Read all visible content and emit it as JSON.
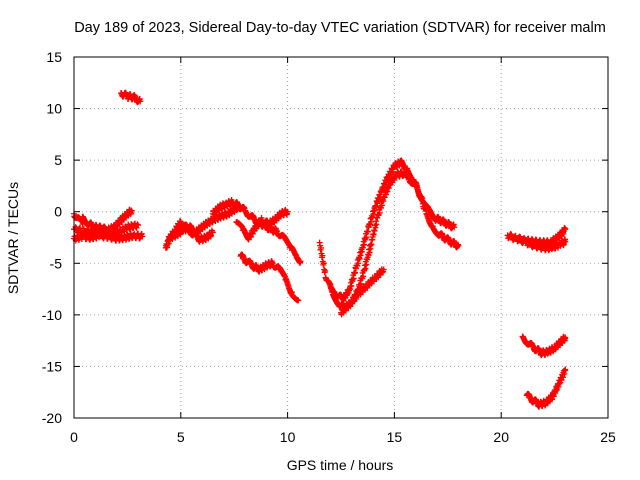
{
  "chart_data": {
    "type": "scatter",
    "title": "Day 189 of 2023, Sidereal Day-to-day VTEC variation (SDTVAR) for receiver malm",
    "xlabel": "GPS time / hours",
    "ylabel": "SDTVAR / TECUs",
    "xlim": [
      0,
      25
    ],
    "ylim": [
      -20,
      15
    ],
    "xticks": [
      "0",
      "5",
      "10",
      "15",
      "20",
      "25"
    ],
    "yticks": [
      "15",
      "10",
      "5",
      "0",
      "-5",
      "-10",
      "-15",
      "-20"
    ],
    "grid": true,
    "marker": "plus",
    "color": "#ff0000",
    "series": [
      {
        "name": "seg1",
        "x": [
          0.0,
          0.4,
          0.8,
          1.2,
          1.6,
          2.0,
          2.4,
          2.8,
          3.2
        ],
        "y": [
          -2.6,
          -2.4,
          -2.5,
          -2.3,
          -2.4,
          -2.6,
          -2.5,
          -2.3,
          -2.4
        ]
      },
      {
        "name": "seg2",
        "x": [
          0.0,
          0.5,
          1.0,
          1.5,
          2.0,
          2.5,
          3.0
        ],
        "y": [
          -1.7,
          -1.9,
          -2.0,
          -1.8,
          -2.1,
          -1.5,
          -1.3
        ]
      },
      {
        "name": "seg3",
        "x": [
          0.4,
          0.7,
          1.0,
          1.3,
          1.6,
          1.9,
          2.2,
          2.5,
          2.7
        ],
        "y": [
          -0.5,
          -1.2,
          -1.5,
          -1.6,
          -1.8,
          -1.5,
          -0.8,
          -0.2,
          0.1
        ]
      },
      {
        "name": "seg4",
        "x": [
          0.0,
          0.2,
          0.4
        ],
        "y": [
          -0.2,
          -0.6,
          -1.2
        ]
      },
      {
        "name": "seg5",
        "x": [
          2.2,
          2.5,
          2.8,
          3.1
        ],
        "y": [
          11.5,
          11.2,
          11.1,
          10.7
        ]
      },
      {
        "name": "seg6",
        "x": [
          4.3,
          4.5,
          4.8,
          5.1,
          5.4,
          5.7,
          6.0,
          6.3,
          6.6,
          6.9,
          7.2,
          7.5,
          7.7
        ],
        "y": [
          -3.5,
          -2.5,
          -2.2,
          -1.8,
          -1.5,
          -2.0,
          -1.5,
          -1.0,
          -0.7,
          -0.4,
          -0.2,
          0.2,
          0.5
        ]
      },
      {
        "name": "seg7",
        "x": [
          4.4,
          4.7,
          5.0,
          5.3,
          5.6,
          5.9,
          6.2,
          6.5
        ],
        "y": [
          -2.8,
          -1.9,
          -1.0,
          -1.6,
          -2.2,
          -2.7,
          -2.5,
          -2.0
        ]
      },
      {
        "name": "seg8",
        "x": [
          6.5,
          6.8,
          7.1,
          7.4,
          7.7,
          8.0,
          8.3,
          8.6,
          8.9,
          9.2,
          9.5,
          9.8,
          10.1,
          10.4,
          10.6
        ],
        "y": [
          -0.2,
          0.4,
          0.7,
          0.9,
          0.6,
          0.1,
          -0.5,
          -1.0,
          -1.3,
          -1.7,
          -1.9,
          -2.5,
          -3.5,
          -4.2,
          -4.8
        ]
      },
      {
        "name": "seg9",
        "x": [
          7.6,
          7.9,
          8.2,
          8.5,
          8.8,
          9.1,
          9.4,
          9.7,
          10.0
        ],
        "y": [
          -1.0,
          -1.8,
          -2.5,
          -1.5,
          -0.8,
          -1.2,
          -0.8,
          -0.2,
          0.0
        ]
      },
      {
        "name": "seg10",
        "x": [
          7.8,
          8.1,
          8.4,
          8.7,
          9.0,
          9.3,
          9.6,
          9.9,
          10.2,
          10.5
        ],
        "y": [
          -4.3,
          -4.8,
          -5.3,
          -5.6,
          -5.2,
          -5.0,
          -5.6,
          -6.6,
          -7.8,
          -8.6
        ]
      },
      {
        "name": "seg11",
        "x": [
          11.5,
          11.8,
          12.1,
          12.4,
          12.7,
          13.0,
          13.3,
          13.6,
          13.9,
          14.2,
          14.5,
          14.8,
          15.1,
          15.4,
          15.7,
          16.0,
          16.3,
          16.6,
          16.9,
          17.2,
          17.5,
          17.8
        ],
        "y": [
          -3.0,
          -6.5,
          -7.8,
          -8.9,
          -9.3,
          -8.8,
          -7.6,
          -5.6,
          -3.2,
          -0.6,
          1.4,
          2.8,
          3.6,
          3.7,
          3.2,
          2.5,
          1.3,
          0.2,
          -0.6,
          -0.9,
          -1.2,
          -1.5
        ]
      },
      {
        "name": "seg12",
        "x": [
          12.0,
          12.3,
          12.6,
          12.9,
          13.2,
          13.5,
          13.8,
          14.1,
          14.4,
          14.7,
          15.0,
          15.3,
          15.6,
          15.9,
          16.2,
          16.5,
          16.8,
          17.1,
          17.4,
          17.7,
          18.0
        ],
        "y": [
          -7.0,
          -8.0,
          -8.5,
          -7.5,
          -5.5,
          -3.5,
          -1.5,
          0.5,
          2.0,
          3.4,
          4.4,
          4.8,
          4.2,
          3.1,
          1.6,
          -0.2,
          -1.4,
          -2.2,
          -2.6,
          -3.0,
          -3.3
        ]
      },
      {
        "name": "seg13",
        "x": [
          12.5,
          12.9,
          13.3,
          13.7,
          14.1,
          14.5
        ],
        "y": [
          -9.8,
          -9.0,
          -8.0,
          -7.2,
          -6.4,
          -5.6
        ]
      },
      {
        "name": "seg14",
        "x": [
          20.3,
          20.7,
          21.1,
          21.5,
          21.9,
          22.3,
          22.7,
          23.0
        ],
        "y": [
          -2.3,
          -2.6,
          -2.8,
          -2.9,
          -3.0,
          -3.0,
          -2.4,
          -1.7
        ]
      },
      {
        "name": "seg15",
        "x": [
          20.8,
          21.2,
          21.6,
          22.0,
          22.4,
          22.8,
          23.0
        ],
        "y": [
          -2.6,
          -3.0,
          -3.3,
          -3.5,
          -3.5,
          -3.1,
          -2.9
        ]
      },
      {
        "name": "seg16",
        "x": [
          21.0,
          21.3,
          21.6,
          21.9,
          22.2,
          22.5,
          22.8,
          23.0
        ],
        "y": [
          -12.1,
          -12.8,
          -13.3,
          -13.7,
          -13.6,
          -13.2,
          -12.6,
          -12.2
        ]
      },
      {
        "name": "seg17",
        "x": [
          21.2,
          21.5,
          21.8,
          22.1,
          22.4,
          22.7,
          23.0
        ],
        "y": [
          -17.8,
          -18.3,
          -18.7,
          -18.5,
          -17.9,
          -16.7,
          -15.3
        ]
      }
    ]
  }
}
